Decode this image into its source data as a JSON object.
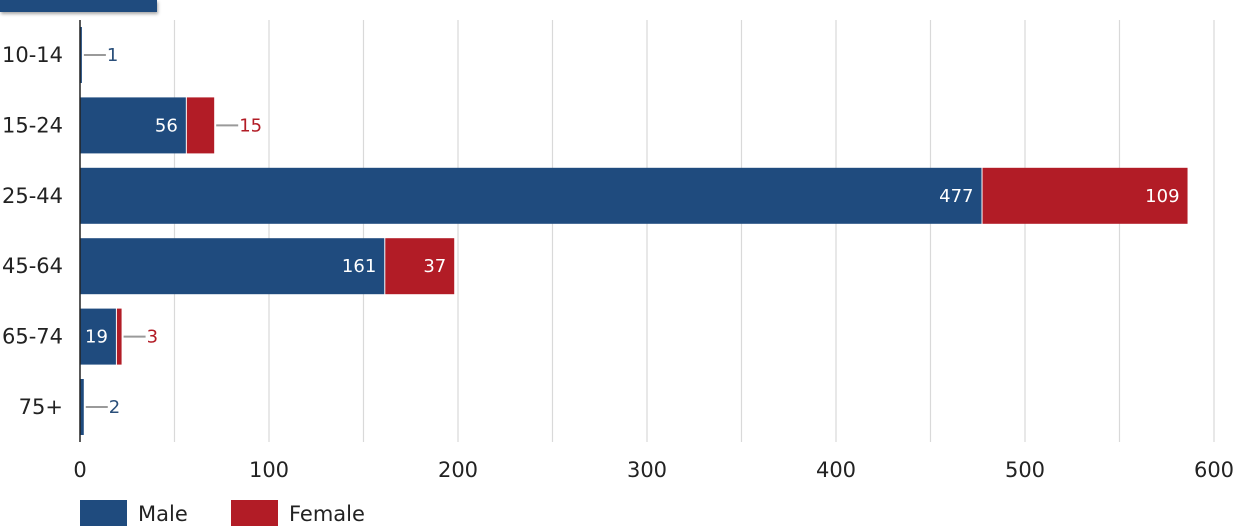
{
  "chart_data": {
    "type": "bar",
    "orientation": "horizontal",
    "stacked": true,
    "categories": [
      "10-14",
      "15-24",
      "25-44",
      "45-64",
      "65-74",
      "75+"
    ],
    "series": [
      {
        "name": "Male",
        "color": "#1f4b7e",
        "values": [
          1,
          56,
          477,
          161,
          19,
          2
        ]
      },
      {
        "name": "Female",
        "color": "#b21c26",
        "values": [
          0,
          15,
          109,
          37,
          3,
          0
        ]
      }
    ],
    "xlim": [
      0,
      600
    ],
    "xticks": [
      0,
      100,
      200,
      300,
      400,
      500,
      600
    ],
    "grid": true,
    "legend": "bottom-left",
    "data_labels": [
      {
        "category": "10-14",
        "series": "Male",
        "text": "1"
      },
      {
        "category": "15-24",
        "series": "Male",
        "text": "56"
      },
      {
        "category": "15-24",
        "series": "Female",
        "text": "15"
      },
      {
        "category": "25-44",
        "series": "Male",
        "text": "477"
      },
      {
        "category": "25-44",
        "series": "Female",
        "text": "109"
      },
      {
        "category": "45-64",
        "series": "Male",
        "text": "161"
      },
      {
        "category": "45-64",
        "series": "Female",
        "text": "37"
      },
      {
        "category": "65-74",
        "series": "Male",
        "text": "19"
      },
      {
        "category": "65-74",
        "series": "Female",
        "text": "3"
      },
      {
        "category": "75+",
        "series": "Male",
        "text": "2"
      }
    ]
  }
}
